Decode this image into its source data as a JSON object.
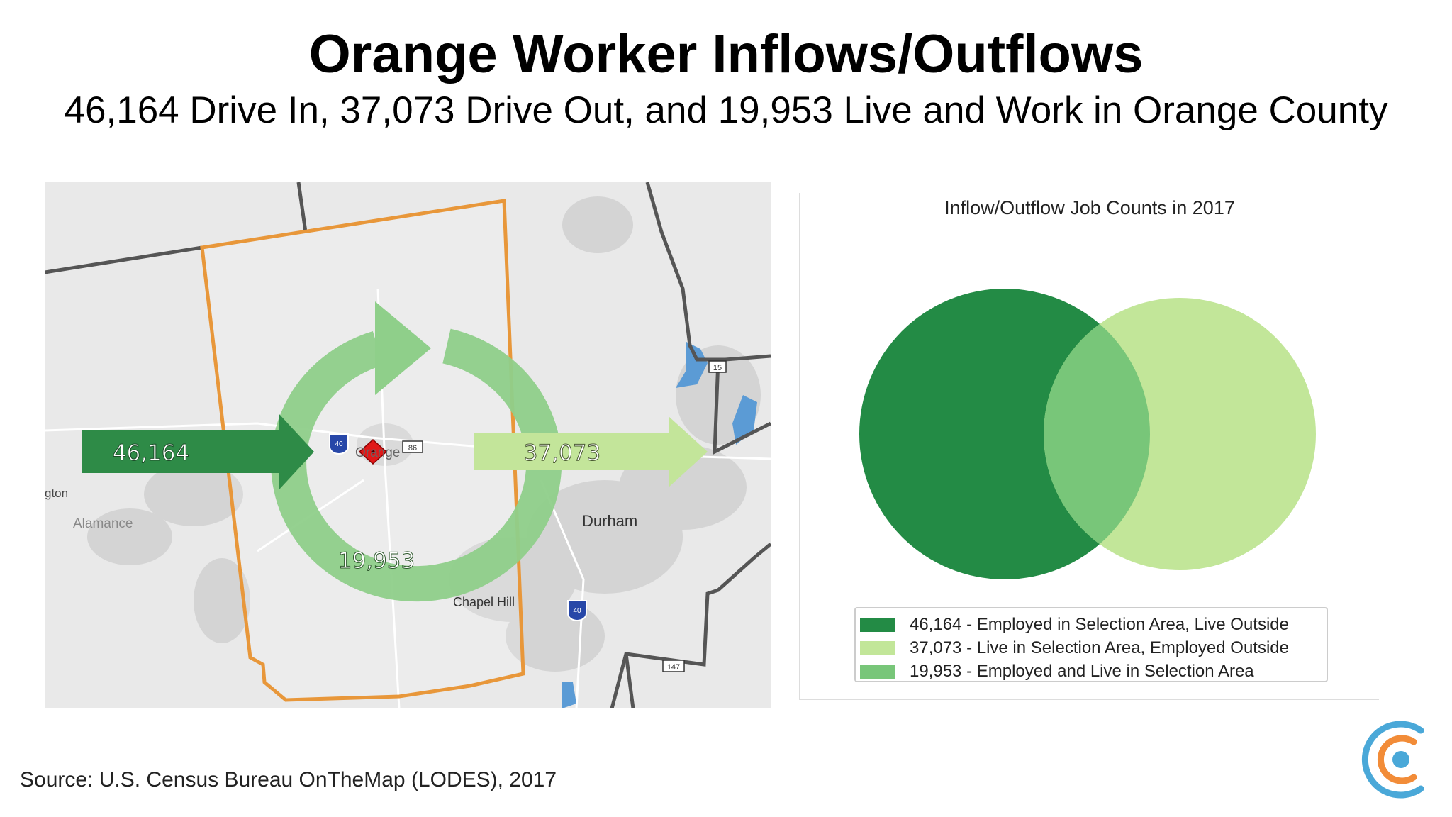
{
  "slide": {
    "title": "Orange Worker Inflows/Outflows",
    "subtitle": "46,164 Drive In, 37,073 Drive Out, and 19,953 Live and Work in Orange County",
    "source": "Source: U.S. Census Bureau OnTheMap (LODES), 2017"
  },
  "map": {
    "inflow_value": "46,164",
    "outflow_value": "37,073",
    "internal_value": "19,953",
    "place_labels": {
      "durham": "Durham",
      "chapel_hill": "Chapel Hill",
      "alamance": "Alamance",
      "burlington_partial": "gton",
      "orange_town": "Orange"
    },
    "route_shields": {
      "i40_north": "40",
      "i40_south": "40",
      "us15": "15",
      "nc86": "86",
      "us147": "147"
    },
    "colors": {
      "inflow": "#2e8b47",
      "outflow": "#c3e59a",
      "internal": "#8fcf8a",
      "county_border": "#e8973a"
    }
  },
  "venn": {
    "title": "Inflow/Outflow Job Counts in 2017",
    "legend": [
      {
        "label": "46,164 - Employed in Selection Area, Live Outside",
        "color": "#238b45"
      },
      {
        "label": "37,073 - Live in Selection Area, Employed Outside",
        "color": "#c2e699"
      },
      {
        "label": "19,953 - Employed and Live in Selection Area",
        "color": "#78c679"
      }
    ]
  }
}
